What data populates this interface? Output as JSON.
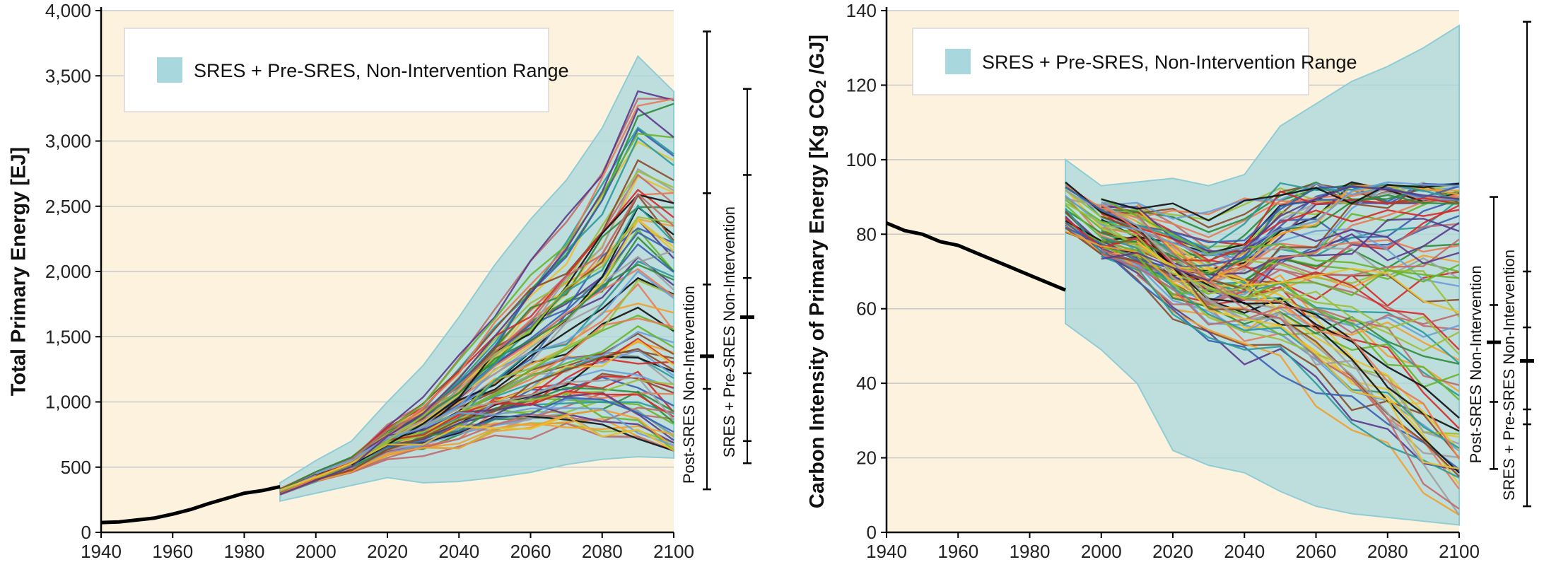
{
  "chart_data": [
    {
      "type": "line",
      "ylabel": "Total Primary Energy [EJ]",
      "xlim": [
        1940,
        2100
      ],
      "ylim": [
        0,
        4000
      ],
      "x_ticks": [
        1940,
        1960,
        1980,
        2000,
        2020,
        2040,
        2060,
        2080,
        2100
      ],
      "y_ticks": [
        0,
        500,
        1000,
        1500,
        2000,
        2500,
        3000,
        3500,
        4000
      ],
      "x_tick_labels": [
        "1940",
        "1960",
        "1980",
        "2000",
        "2020",
        "2040",
        "2060",
        "2080",
        "2100"
      ],
      "y_tick_labels": [
        "0",
        "500",
        "1,000",
        "1,500",
        "2,000",
        "2,500",
        "3,000",
        "3,500",
        "4,000"
      ],
      "grid": "horizontal",
      "legend": {
        "placement": "top-left",
        "label": "SRES + Pre-SRES, Non-Intervention Range",
        "color": "#a8d7dd"
      },
      "background_color": "#fdf2dd",
      "historical": {
        "x": [
          1940,
          1945,
          1950,
          1955,
          1960,
          1965,
          1970,
          1975,
          1980,
          1985,
          1990
        ],
        "y": [
          75,
          80,
          95,
          110,
          140,
          175,
          220,
          260,
          300,
          320,
          350
        ]
      },
      "range_band": {
        "x": [
          1990,
          2000,
          2010,
          2020,
          2030,
          2040,
          2050,
          2060,
          2070,
          2080,
          2090,
          2100
        ],
        "upper": [
          380,
          550,
          700,
          1000,
          1280,
          1650,
          2050,
          2400,
          2700,
          3100,
          3650,
          3380
        ],
        "lower": [
          240,
          300,
          360,
          420,
          380,
          390,
          420,
          460,
          520,
          560,
          580,
          570
        ]
      },
      "scenario_ranges": [
        {
          "label": "Post-SRES Non-Intervention",
          "min": 330,
          "q1": 1100,
          "median": 1350,
          "q3": 1900,
          "max": 2600,
          "top": 3840
        },
        {
          "label": "SRES + Pre-SRES Non-Intervention",
          "min": 530,
          "p10": 700,
          "q1": 1220,
          "median": 1650,
          "q3": 1950,
          "p90": 2740,
          "max": 3400
        }
      ]
    },
    {
      "type": "line",
      "ylabel": "Carbon Intensity of Primary Energy [Kg CO",
      "ylabel_sub": "2",
      "ylabel_tail": " /GJ]",
      "xlim": [
        1940,
        2100
      ],
      "ylim": [
        0,
        140
      ],
      "x_ticks": [
        1940,
        1960,
        1980,
        2000,
        2020,
        2040,
        2060,
        2080,
        2100
      ],
      "y_ticks": [
        0,
        20,
        40,
        60,
        80,
        100,
        120,
        140
      ],
      "x_tick_labels": [
        "1940",
        "1960",
        "1980",
        "2000",
        "2020",
        "2040",
        "2060",
        "2080",
        "2100"
      ],
      "y_tick_labels": [
        "0",
        "20",
        "40",
        "60",
        "80",
        "100",
        "120",
        "140"
      ],
      "grid": "horizontal",
      "legend": {
        "placement": "top-left",
        "label": "SRES + Pre-SRES, Non-Intervention Range",
        "color": "#a8d7dd"
      },
      "background_color": "#fdf2dd",
      "historical": {
        "x": [
          1940,
          1945,
          1950,
          1955,
          1960,
          1965,
          1970,
          1975,
          1980,
          1985,
          1990
        ],
        "y": [
          83,
          81,
          80,
          78,
          77,
          75,
          73,
          71,
          69,
          67,
          65
        ]
      },
      "range_band": {
        "x": [
          1990,
          2000,
          2010,
          2020,
          2030,
          2040,
          2050,
          2060,
          2070,
          2080,
          2090,
          2100
        ],
        "upper": [
          100,
          93,
          94,
          95,
          93,
          96,
          109,
          115,
          121,
          125,
          130,
          136
        ],
        "lower": [
          56,
          49,
          40,
          22,
          18,
          16,
          11,
          7,
          5,
          4,
          3,
          2
        ]
      },
      "scenario_ranges": [
        {
          "label": "Post-SRES Non-Intervention",
          "min": 17,
          "q1": 35,
          "median": 51,
          "q3": 61,
          "max": 90
        },
        {
          "label": "SRES + Pre-SRES Non-Intervention",
          "min": 7,
          "p10": 29,
          "q1": 33,
          "median": 46,
          "q3": 55,
          "p90": 70,
          "max": 137
        }
      ]
    }
  ],
  "scenario_colors": [
    "#d62a2a",
    "#2e8b3a",
    "#f0a030",
    "#3a5fb0",
    "#8b4a2a",
    "#e87a55",
    "#2a9a9a",
    "#66b52a",
    "#a0a0a0",
    "#111111",
    "#6a9ed6",
    "#9bbf3a",
    "#c06a6a",
    "#e8c030",
    "#5a3a8a"
  ]
}
